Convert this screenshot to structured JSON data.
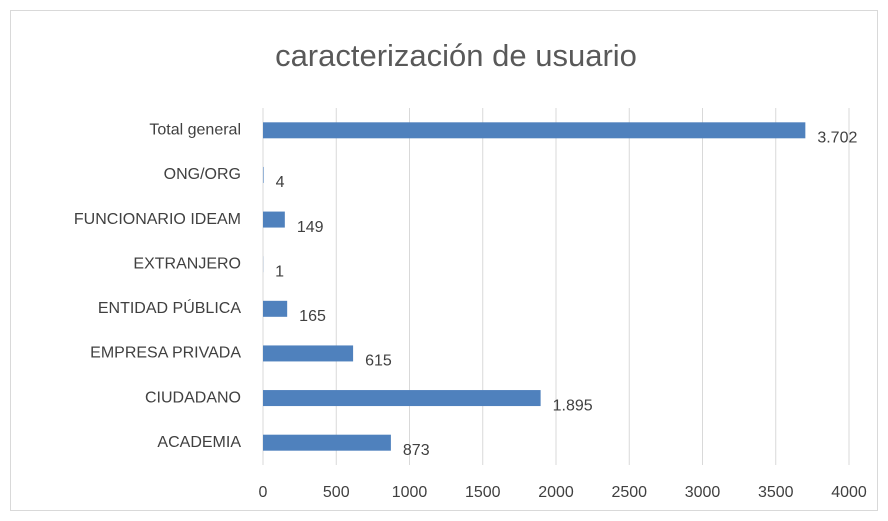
{
  "chart_data": {
    "type": "hbar",
    "title": "caracterización de usuario",
    "categories": [
      "Total general",
      "ONG/ORG",
      "FUNCIONARIO IDEAM",
      "EXTRANJERO",
      "ENTIDAD PÚBLICA",
      "EMPRESA PRIVADA",
      "CIUDADANO",
      "ACADEMIA"
    ],
    "values": [
      3702,
      4,
      149,
      1,
      165,
      615,
      1895,
      873
    ],
    "value_labels": [
      "3.702",
      "4",
      "149",
      "1",
      "165",
      "615",
      "1.895",
      "873"
    ],
    "color": "#4f81bd",
    "xlim": [
      0,
      4000
    ],
    "xticks": [
      0,
      500,
      1000,
      1500,
      2000,
      2500,
      3000,
      3500,
      4000
    ],
    "grid": true
  }
}
